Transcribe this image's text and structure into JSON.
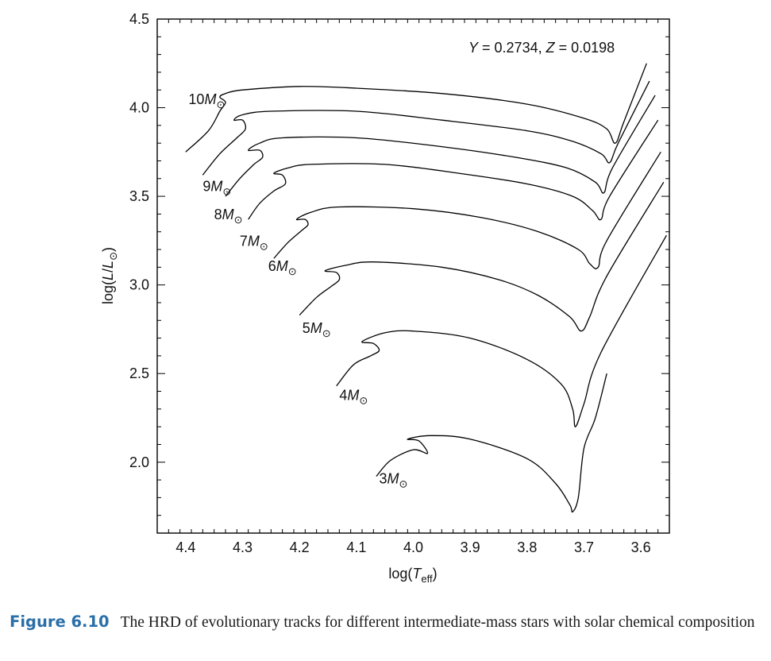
{
  "chart_data": {
    "type": "line",
    "title": "",
    "annotation": {
      "parts": [
        "Y",
        " = 0.2734,  ",
        "Z",
        " = 0.0198"
      ]
    },
    "xlabel": {
      "pre": "log(",
      "italic": "T",
      "sub": "eff",
      "post": ")"
    },
    "ylabel": {
      "pre": "log(",
      "italic": "L",
      "mid": "/",
      "italic2": "L",
      "sub": "⊙",
      "post": ")"
    },
    "xlim": [
      4.45,
      3.55
    ],
    "ylim": [
      1.6,
      4.5
    ],
    "x_ticks": [
      "4.4",
      "4.3",
      "4.2",
      "4.1",
      "4.0",
      "3.9",
      "3.8",
      "3.7",
      "3.6"
    ],
    "y_ticks": [
      "2.0",
      "2.5",
      "3.0",
      "3.5",
      "4.0",
      "4.5"
    ],
    "grid": false,
    "series": [
      {
        "name": "10M⊙",
        "mass": "10",
        "label_at": [
          4.395,
          4.02
        ],
        "points": [
          [
            4.4,
            3.75
          ],
          [
            4.36,
            3.87
          ],
          [
            4.34,
            3.98
          ],
          [
            4.33,
            4.03
          ],
          [
            4.34,
            4.06
          ],
          [
            4.33,
            4.08
          ],
          [
            4.3,
            4.1
          ],
          [
            4.2,
            4.12
          ],
          [
            4.1,
            4.11
          ],
          [
            3.95,
            4.08
          ],
          [
            3.8,
            4.02
          ],
          [
            3.7,
            3.94
          ],
          [
            3.66,
            3.88
          ],
          [
            3.645,
            3.8
          ],
          [
            3.63,
            3.92
          ],
          [
            3.59,
            4.25
          ]
        ]
      },
      {
        "name": "9M⊙",
        "mass": "9",
        "label_at": [
          4.37,
          3.53
        ],
        "points": [
          [
            4.37,
            3.62
          ],
          [
            4.34,
            3.74
          ],
          [
            4.31,
            3.83
          ],
          [
            4.295,
            3.88
          ],
          [
            4.3,
            3.93
          ],
          [
            4.315,
            3.93
          ],
          [
            4.3,
            3.96
          ],
          [
            4.25,
            3.98
          ],
          [
            4.1,
            3.98
          ],
          [
            3.95,
            3.93
          ],
          [
            3.8,
            3.87
          ],
          [
            3.72,
            3.81
          ],
          [
            3.67,
            3.74
          ],
          [
            3.655,
            3.69
          ],
          [
            3.64,
            3.8
          ],
          [
            3.585,
            4.15
          ]
        ]
      },
      {
        "name": "8M⊙",
        "mass": "8",
        "label_at": [
          4.35,
          3.37
        ],
        "points": [
          [
            4.33,
            3.5
          ],
          [
            4.305,
            3.6
          ],
          [
            4.28,
            3.68
          ],
          [
            4.265,
            3.72
          ],
          [
            4.27,
            3.76
          ],
          [
            4.29,
            3.76
          ],
          [
            4.27,
            3.8
          ],
          [
            4.23,
            3.83
          ],
          [
            4.1,
            3.83
          ],
          [
            3.95,
            3.78
          ],
          [
            3.82,
            3.72
          ],
          [
            3.73,
            3.66
          ],
          [
            3.68,
            3.58
          ],
          [
            3.665,
            3.52
          ],
          [
            3.65,
            3.66
          ],
          [
            3.575,
            4.07
          ]
        ]
      },
      {
        "name": "7M⊙",
        "mass": "7",
        "label_at": [
          4.305,
          3.22
        ],
        "points": [
          [
            4.29,
            3.37
          ],
          [
            4.27,
            3.46
          ],
          [
            4.245,
            3.53
          ],
          [
            4.225,
            3.57
          ],
          [
            4.23,
            3.62
          ],
          [
            4.245,
            3.63
          ],
          [
            4.22,
            3.66
          ],
          [
            4.18,
            3.68
          ],
          [
            4.05,
            3.68
          ],
          [
            3.92,
            3.63
          ],
          [
            3.8,
            3.57
          ],
          [
            3.72,
            3.5
          ],
          [
            3.685,
            3.42
          ],
          [
            3.67,
            3.37
          ],
          [
            3.655,
            3.5
          ],
          [
            3.57,
            3.93
          ]
        ]
      },
      {
        "name": "6M⊙",
        "mass": "6",
        "label_at": [
          4.255,
          3.08
        ],
        "points": [
          [
            4.245,
            3.15
          ],
          [
            4.22,
            3.24
          ],
          [
            4.195,
            3.31
          ],
          [
            4.185,
            3.34
          ],
          [
            4.19,
            3.37
          ],
          [
            4.205,
            3.37
          ],
          [
            4.18,
            3.41
          ],
          [
            4.13,
            3.44
          ],
          [
            4.0,
            3.43
          ],
          [
            3.88,
            3.38
          ],
          [
            3.78,
            3.3
          ],
          [
            3.71,
            3.2
          ],
          [
            3.69,
            3.12
          ],
          [
            3.675,
            3.1
          ],
          [
            3.66,
            3.25
          ],
          [
            3.565,
            3.75
          ]
        ]
      },
      {
        "name": "5M⊙",
        "mass": "5",
        "label_at": [
          4.195,
          2.73
        ],
        "points": [
          [
            4.2,
            2.83
          ],
          [
            4.17,
            2.93
          ],
          [
            4.145,
            2.99
          ],
          [
            4.13,
            3.03
          ],
          [
            4.135,
            3.07
          ],
          [
            4.155,
            3.08
          ],
          [
            4.12,
            3.11
          ],
          [
            4.07,
            3.13
          ],
          [
            3.95,
            3.1
          ],
          [
            3.85,
            3.03
          ],
          [
            3.78,
            2.94
          ],
          [
            3.725,
            2.82
          ],
          [
            3.705,
            2.74
          ],
          [
            3.69,
            2.82
          ],
          [
            3.66,
            3.05
          ],
          [
            3.56,
            3.58
          ]
        ]
      },
      {
        "name": "4M⊙",
        "mass": "4",
        "label_at": [
          4.13,
          2.35
        ],
        "points": [
          [
            4.135,
            2.43
          ],
          [
            4.105,
            2.55
          ],
          [
            4.075,
            2.6
          ],
          [
            4.06,
            2.63
          ],
          [
            4.07,
            2.67
          ],
          [
            4.09,
            2.68
          ],
          [
            4.05,
            2.73
          ],
          [
            4.0,
            2.74
          ],
          [
            3.9,
            2.7
          ],
          [
            3.8,
            2.58
          ],
          [
            3.74,
            2.44
          ],
          [
            3.72,
            2.3
          ],
          [
            3.715,
            2.2
          ],
          [
            3.7,
            2.33
          ],
          [
            3.67,
            2.62
          ],
          [
            3.555,
            3.28
          ]
        ]
      },
      {
        "name": "3M⊙",
        "mass": "3",
        "label_at": [
          4.06,
          1.88
        ],
        "points": [
          [
            4.065,
            1.92
          ],
          [
            4.04,
            2.01
          ],
          [
            4.0,
            2.07
          ],
          [
            3.975,
            2.05
          ],
          [
            3.99,
            2.12
          ],
          [
            4.01,
            2.13
          ],
          [
            3.97,
            2.15
          ],
          [
            3.9,
            2.13
          ],
          [
            3.8,
            2.02
          ],
          [
            3.75,
            1.88
          ],
          [
            3.725,
            1.76
          ],
          [
            3.72,
            1.72
          ],
          [
            3.71,
            1.8
          ],
          [
            3.7,
            2.08
          ],
          [
            3.68,
            2.25
          ],
          [
            3.66,
            2.5
          ]
        ]
      }
    ]
  },
  "caption": {
    "label": "Figure 6.10",
    "text": "The HRD of evolutionary tracks for different intermediate-mass stars with solar chemical composition"
  }
}
